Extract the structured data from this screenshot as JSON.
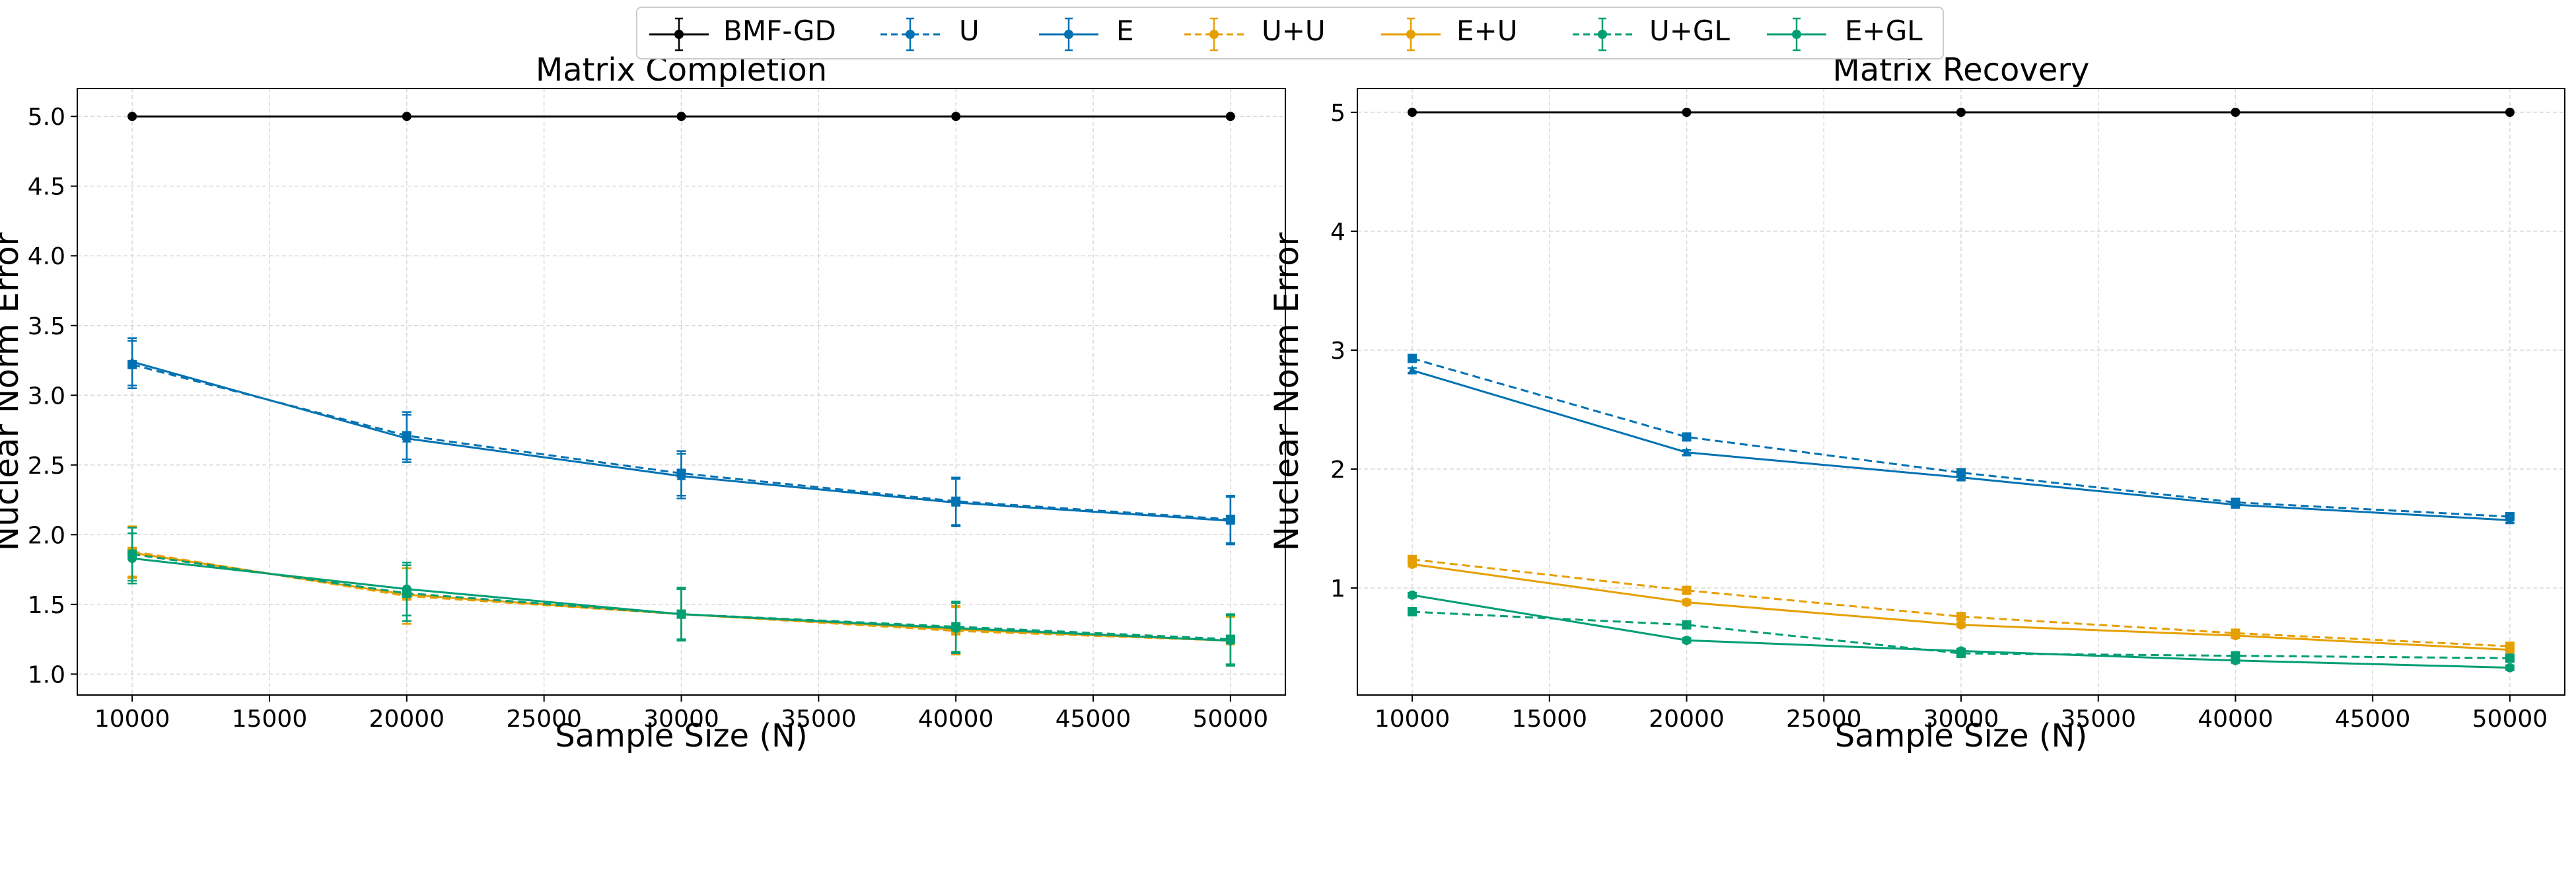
{
  "legend": {
    "items": [
      {
        "label": "BMF-GD",
        "color": "#000000",
        "dashed": false,
        "marker": "circle"
      },
      {
        "label": "U",
        "color": "#0072b2",
        "dashed": true,
        "marker": "square"
      },
      {
        "label": "E",
        "color": "#0072b2",
        "dashed": false,
        "marker": "triangle"
      },
      {
        "label": "U+U",
        "color": "#e69f00",
        "dashed": true,
        "marker": "square"
      },
      {
        "label": "E+U",
        "color": "#e69f00",
        "dashed": false,
        "marker": "circle"
      },
      {
        "label": "U+GL",
        "color": "#009e73",
        "dashed": true,
        "marker": "square"
      },
      {
        "label": "E+GL",
        "color": "#009e73",
        "dashed": false,
        "marker": "circle"
      }
    ]
  },
  "chart_data": [
    {
      "type": "line",
      "title": "Matrix Completion",
      "xlabel": "Sample Size (N)",
      "ylabel": "Nuclear Norm Error",
      "x": [
        10000,
        20000,
        30000,
        40000,
        50000
      ],
      "xlim": [
        8000,
        52000
      ],
      "ylim": [
        0.85,
        5.2
      ],
      "xticks": [
        10000,
        15000,
        20000,
        25000,
        30000,
        35000,
        40000,
        45000,
        50000
      ],
      "xtick_labels": [
        "10000",
        "15000",
        "20000",
        "25000",
        "30000",
        "35000",
        "40000",
        "45000",
        "50000"
      ],
      "yticks": [
        1.0,
        1.5,
        2.0,
        2.5,
        3.0,
        3.5,
        4.0,
        4.5,
        5.0
      ],
      "ytick_labels": [
        "1.0",
        "1.5",
        "2.0",
        "2.5",
        "3.0",
        "3.5",
        "4.0",
        "4.5",
        "5.0"
      ],
      "grid": true,
      "series": [
        {
          "name": "BMF-GD",
          "values": [
            5.0,
            5.0,
            5.0,
            5.0,
            5.0
          ],
          "err": [
            0,
            0,
            0,
            0,
            0
          ]
        },
        {
          "name": "U",
          "values": [
            3.22,
            2.71,
            2.44,
            2.24,
            2.11
          ],
          "err": [
            0.17,
            0.17,
            0.16,
            0.17,
            0.17
          ]
        },
        {
          "name": "E",
          "values": [
            3.24,
            2.69,
            2.42,
            2.23,
            2.1
          ],
          "err": [
            0.17,
            0.17,
            0.16,
            0.17,
            0.17
          ]
        },
        {
          "name": "U+U",
          "values": [
            1.88,
            1.56,
            1.43,
            1.31,
            1.24
          ],
          "err": [
            0.18,
            0.2,
            0.19,
            0.17,
            0.18
          ]
        },
        {
          "name": "E+U",
          "values": [
            1.87,
            1.57,
            1.43,
            1.32,
            1.24
          ],
          "err": [
            0.18,
            0.19,
            0.19,
            0.17,
            0.17
          ]
        },
        {
          "name": "U+GL",
          "values": [
            1.86,
            1.58,
            1.43,
            1.34,
            1.25
          ],
          "err": [
            0.19,
            0.2,
            0.19,
            0.18,
            0.18
          ]
        },
        {
          "name": "E+GL",
          "values": [
            1.83,
            1.61,
            1.43,
            1.33,
            1.24
          ],
          "err": [
            0.18,
            0.19,
            0.18,
            0.18,
            0.18
          ]
        }
      ]
    },
    {
      "type": "line",
      "title": "Matrix Recovery",
      "xlabel": "Sample Size (N)",
      "ylabel": "Nuclear Norm Error",
      "x": [
        10000,
        20000,
        30000,
        40000,
        50000
      ],
      "xlim": [
        8000,
        52000
      ],
      "ylim": [
        0.1,
        5.2
      ],
      "xticks": [
        10000,
        15000,
        20000,
        25000,
        30000,
        35000,
        40000,
        45000,
        50000
      ],
      "xtick_labels": [
        "10000",
        "15000",
        "20000",
        "25000",
        "30000",
        "35000",
        "40000",
        "45000",
        "50000"
      ],
      "yticks": [
        1,
        2,
        3,
        4,
        5
      ],
      "ytick_labels": [
        "1",
        "2",
        "3",
        "4",
        "5"
      ],
      "grid": true,
      "series": [
        {
          "name": "BMF-GD",
          "values": [
            5.0,
            5.0,
            5.0,
            5.0,
            5.0
          ],
          "err": [
            0,
            0,
            0,
            0,
            0
          ]
        },
        {
          "name": "U",
          "values": [
            2.93,
            2.27,
            1.97,
            1.72,
            1.6
          ],
          "err": [
            0.03,
            0.02,
            0.02,
            0.02,
            0.02
          ]
        },
        {
          "name": "E",
          "values": [
            2.83,
            2.14,
            1.93,
            1.7,
            1.57
          ],
          "err": [
            0.02,
            0.02,
            0.02,
            0.02,
            0.02
          ]
        },
        {
          "name": "U+U",
          "values": [
            1.24,
            0.98,
            0.76,
            0.62,
            0.51
          ],
          "err": [
            0.02,
            0.02,
            0.02,
            0.02,
            0.02
          ]
        },
        {
          "name": "E+U",
          "values": [
            1.2,
            0.88,
            0.69,
            0.6,
            0.48
          ],
          "err": [
            0.02,
            0.02,
            0.02,
            0.02,
            0.02
          ]
        },
        {
          "name": "U+GL",
          "values": [
            0.8,
            0.69,
            0.45,
            0.43,
            0.41
          ],
          "err": [
            0.02,
            0.02,
            0.02,
            0.02,
            0.02
          ]
        },
        {
          "name": "E+GL",
          "values": [
            0.94,
            0.56,
            0.47,
            0.39,
            0.33
          ],
          "err": [
            0.02,
            0.02,
            0.02,
            0.02,
            0.02
          ]
        }
      ]
    }
  ]
}
